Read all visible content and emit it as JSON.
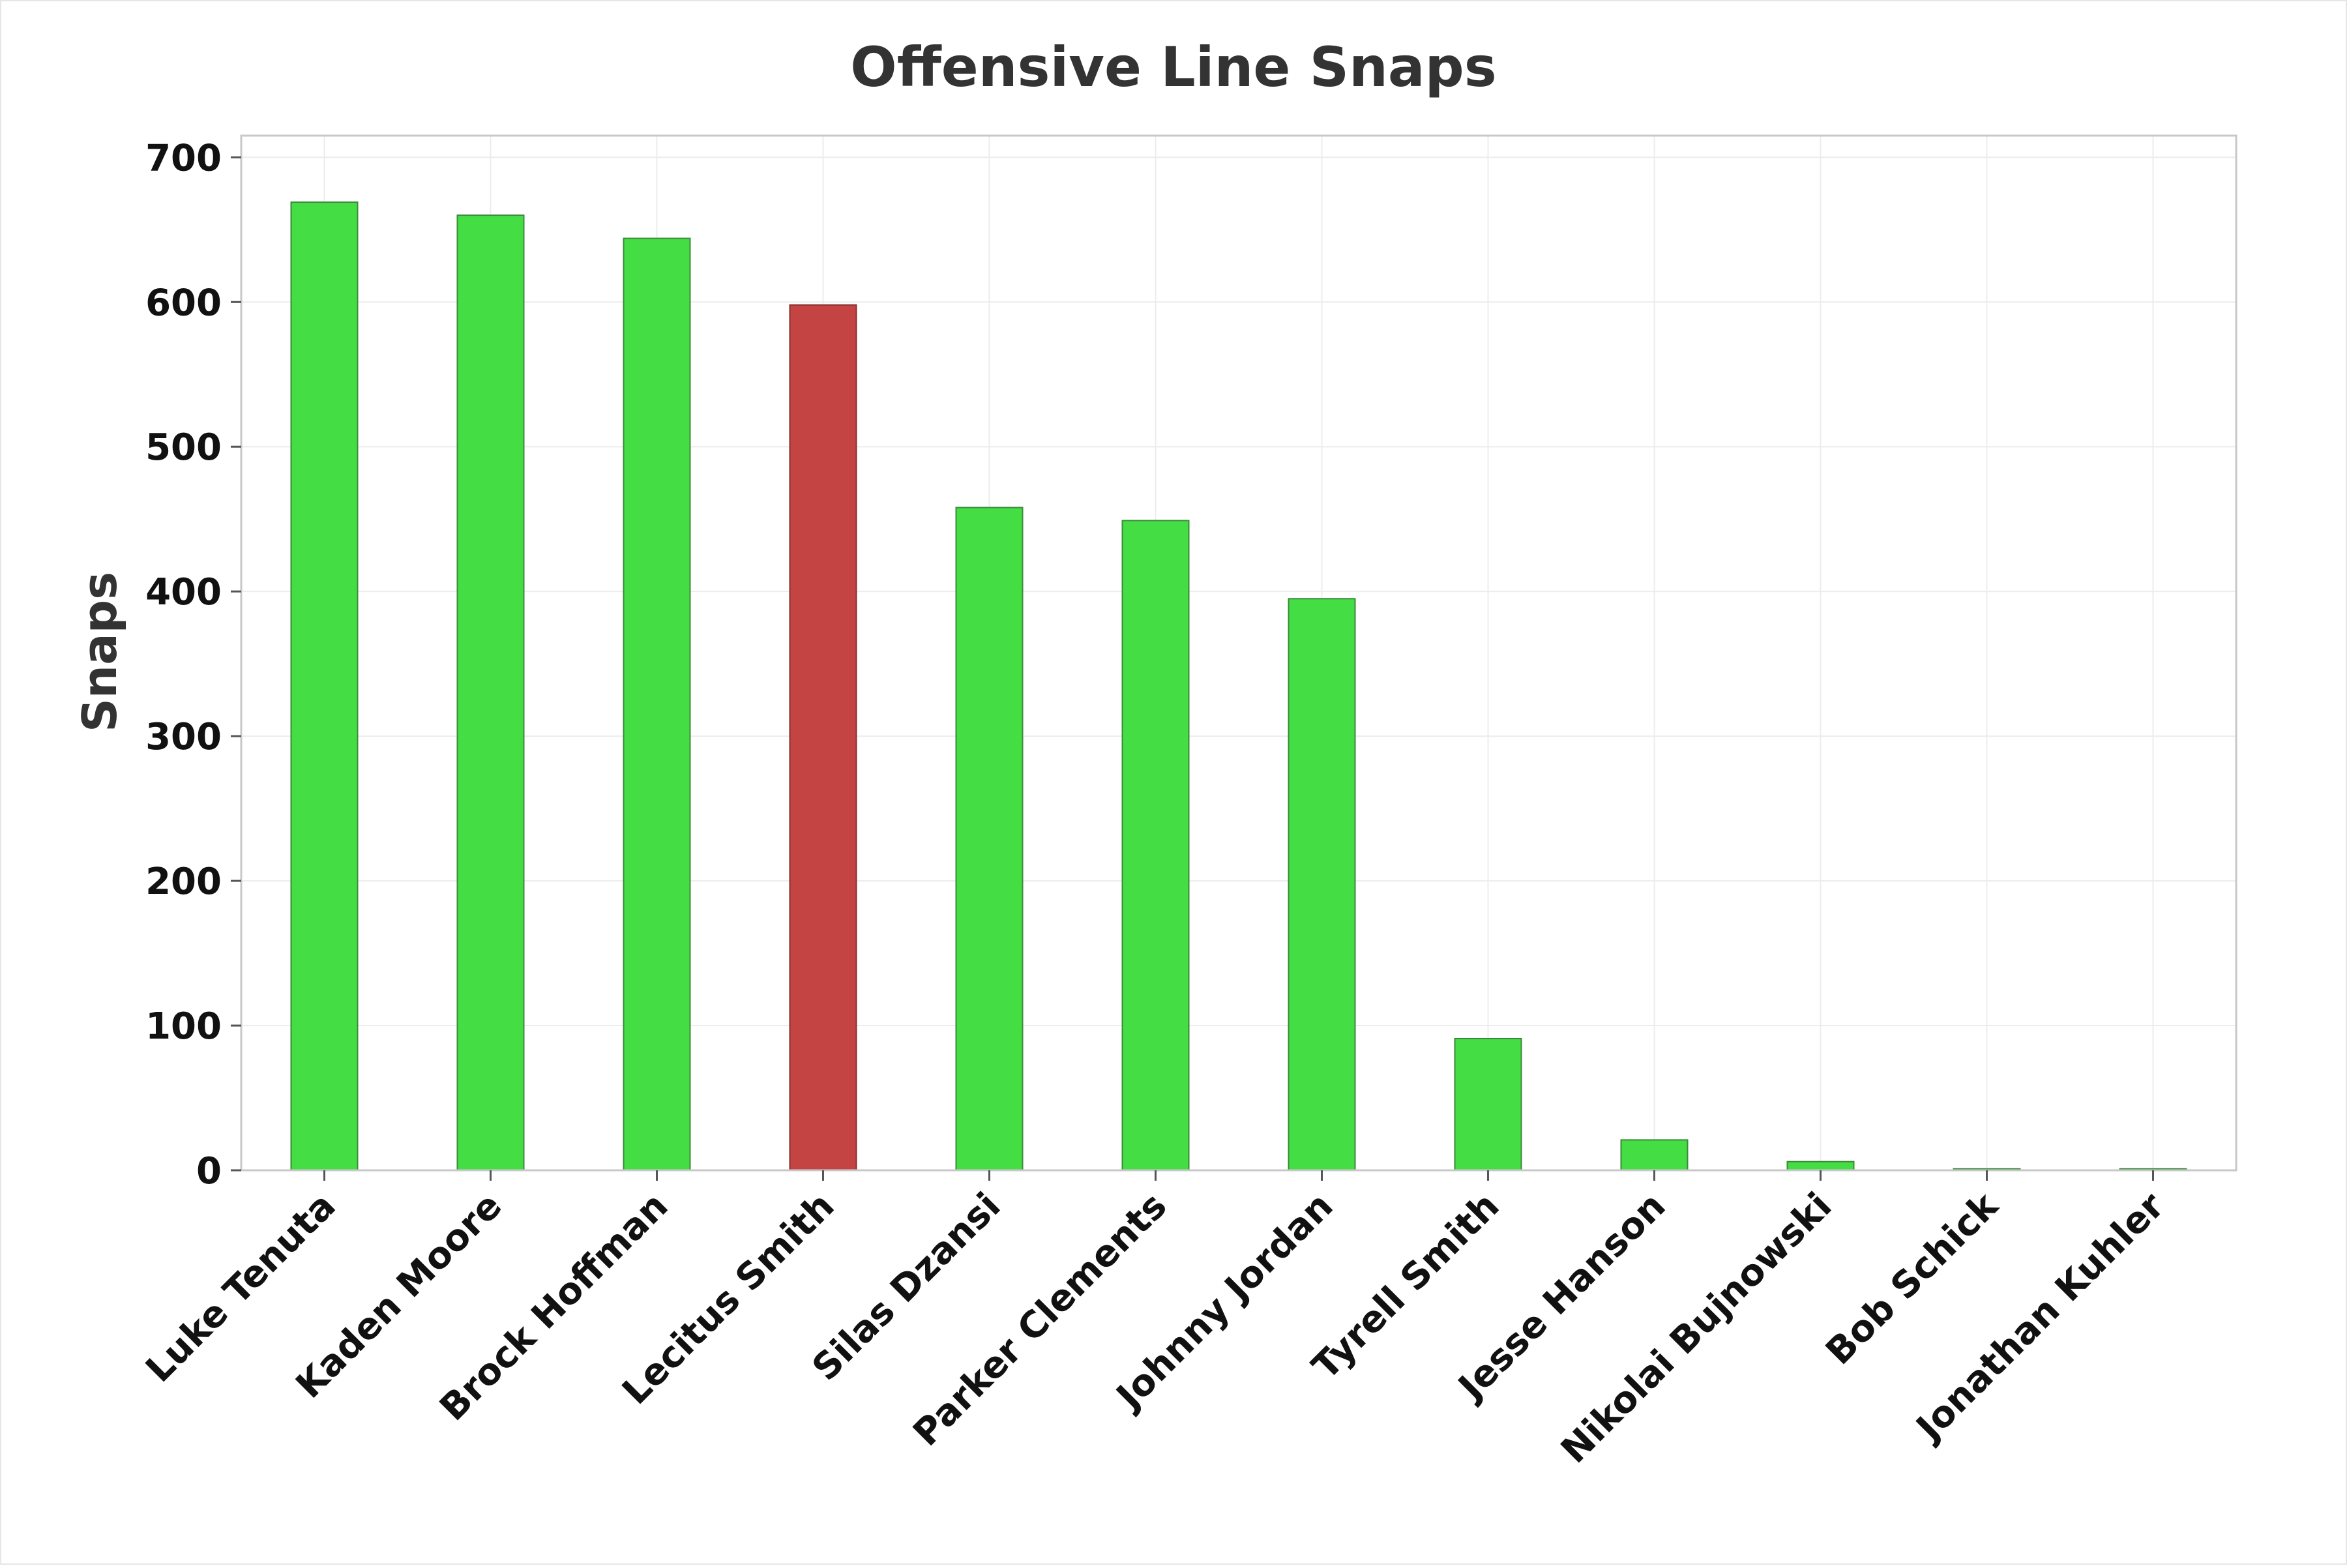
{
  "chart_data": {
    "type": "bar",
    "title": "Offensive Line Snaps",
    "xlabel": "",
    "ylabel": "Snaps",
    "ylim": [
      0,
      715
    ],
    "yticks": [
      0,
      100,
      200,
      300,
      400,
      500,
      600,
      700
    ],
    "grid": true,
    "categories": [
      "Luke Tenuta",
      "Kaden Moore",
      "Brock Hoffman",
      "Lecitus Smith",
      "Silas Dzansi",
      "Parker Clements",
      "Johnny Jordan",
      "Tyrell Smith",
      "Jesse Hanson",
      "Nikolai Bujnowski",
      "Bob Schick",
      "Jonathan Kuhler"
    ],
    "values": [
      669,
      660,
      644,
      598,
      458,
      449,
      395,
      91,
      21,
      6,
      1,
      1
    ],
    "colors": [
      "#44dd44",
      "#44dd44",
      "#44dd44",
      "#c44444",
      "#44dd44",
      "#44dd44",
      "#44dd44",
      "#44dd44",
      "#44dd44",
      "#44dd44",
      "#44dd44",
      "#44dd44"
    ],
    "bar_edge_color": "#3a8a3a",
    "highlight_edge_color": "#8a3030"
  }
}
